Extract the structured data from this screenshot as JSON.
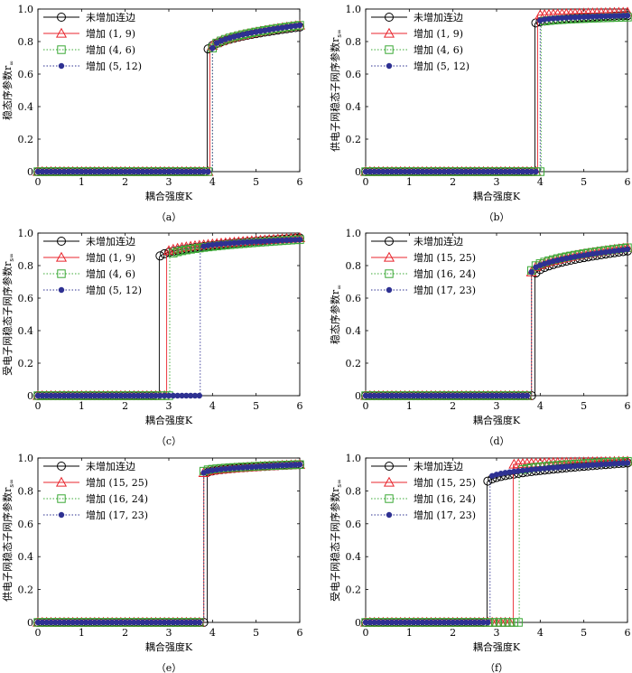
{
  "chart_data": [
    {
      "type": "line",
      "caption": "（a）",
      "xlabel": "耦合强度K",
      "ylabel": "稳态序参数r",
      "ylabel_sub": "∞",
      "xlim": [
        0,
        6
      ],
      "ylim": [
        0,
        1
      ],
      "xticks": [
        "0",
        "1",
        "2",
        "3",
        "4",
        "5",
        "6"
      ],
      "yticks": [
        "0",
        "0.2",
        "0.4",
        "0.6",
        "0.8",
        "1.0"
      ],
      "grid": false,
      "legend": "top-left",
      "series": [
        {
          "name": "未增加连边",
          "color": "#000000",
          "marker": "circle",
          "line": "solid",
          "jump": 3.88,
          "start": 0.74,
          "end": 0.89
        },
        {
          "name": "增加 (1, 9)",
          "color": "#e8262d",
          "marker": "triangle",
          "line": "solid",
          "jump": 3.94,
          "start": 0.75,
          "end": 0.9
        },
        {
          "name": "增加 (4, 6)",
          "color": "#3aa935",
          "marker": "square",
          "line": "dotted",
          "jump": 4.0,
          "start": 0.76,
          "end": 0.9
        },
        {
          "name": "增加 (5, 12)",
          "color": "#2e3192",
          "marker": "dot",
          "line": "dotted",
          "jump": 4.0,
          "start": 0.76,
          "end": 0.9
        }
      ]
    },
    {
      "type": "line",
      "caption": "（b）",
      "xlabel": "耦合强度K",
      "ylabel": "供电子网稳态子网序参数r",
      "ylabel_sub": "s∞",
      "xlim": [
        0,
        6
      ],
      "ylim": [
        0,
        1
      ],
      "xticks": [
        "0",
        "1",
        "2",
        "3",
        "4",
        "5",
        "6"
      ],
      "yticks": [
        "0",
        "0.2",
        "0.4",
        "0.6",
        "0.8",
        "1.0"
      ],
      "grid": false,
      "legend": "top-left",
      "series": [
        {
          "name": "未增加连边",
          "color": "#000000",
          "marker": "circle",
          "line": "solid",
          "jump": 3.88,
          "start": 0.91,
          "end": 0.96
        },
        {
          "name": "增加 (1, 9)",
          "color": "#e8262d",
          "marker": "triangle",
          "line": "solid",
          "jump": 3.94,
          "start": 0.96,
          "end": 0.98
        },
        {
          "name": "增加 (4, 6)",
          "color": "#3aa935",
          "marker": "square",
          "line": "dotted",
          "jump": 4.02,
          "start": 0.92,
          "end": 0.95
        },
        {
          "name": "增加 (5, 12)",
          "color": "#2e3192",
          "marker": "dot",
          "line": "dotted",
          "jump": 4.0,
          "start": 0.93,
          "end": 0.96
        }
      ]
    },
    {
      "type": "line",
      "caption": "（c）",
      "xlabel": "耦合强度K",
      "ylabel": "受电子网稳态子网序参数r",
      "ylabel_sub": "s∞",
      "xlim": [
        0,
        6
      ],
      "ylim": [
        0,
        1
      ],
      "xticks": [
        "0",
        "1",
        "2",
        "3",
        "4",
        "5",
        "6"
      ],
      "yticks": [
        "0",
        "0.2",
        "0.4",
        "0.6",
        "0.8",
        "1.0"
      ],
      "grid": false,
      "legend": "top-left",
      "series": [
        {
          "name": "未增加连边",
          "color": "#000000",
          "marker": "circle",
          "line": "solid",
          "jump": 2.78,
          "start": 0.85,
          "end": 0.97
        },
        {
          "name": "增加 (1, 9)",
          "color": "#e8262d",
          "marker": "triangle",
          "line": "solid",
          "jump": 2.95,
          "start": 0.88,
          "end": 0.97
        },
        {
          "name": "增加 (4, 6)",
          "color": "#3aa935",
          "marker": "square",
          "line": "dotted",
          "jump": 3.02,
          "start": 0.86,
          "end": 0.96
        },
        {
          "name": "增加 (5, 12)",
          "color": "#2e3192",
          "marker": "dot",
          "line": "dotted",
          "jump": 3.72,
          "start": 0.91,
          "end": 0.96
        }
      ]
    },
    {
      "type": "line",
      "caption": "（d）",
      "xlabel": "耦合强度K",
      "ylabel": "稳态序参数r",
      "ylabel_sub": "∞",
      "xlim": [
        0,
        6
      ],
      "ylim": [
        0,
        1
      ],
      "xticks": [
        "0",
        "1",
        "2",
        "3",
        "4",
        "5",
        "6"
      ],
      "yticks": [
        "0",
        "0.2",
        "0.4",
        "0.6",
        "0.8",
        "1.0"
      ],
      "grid": false,
      "legend": "top-left",
      "series": [
        {
          "name": "未增加连边",
          "color": "#000000",
          "marker": "circle",
          "line": "solid",
          "jump": 3.88,
          "start": 0.74,
          "end": 0.89
        },
        {
          "name": "增加 (15, 25)",
          "color": "#e8262d",
          "marker": "triangle",
          "line": "solid",
          "jump": 3.8,
          "start": 0.76,
          "end": 0.91
        },
        {
          "name": "增加 (16, 24)",
          "color": "#3aa935",
          "marker": "square",
          "line": "dotted",
          "jump": 3.8,
          "start": 0.77,
          "end": 0.91
        },
        {
          "name": "增加 (17, 23)",
          "color": "#2e3192",
          "marker": "dot",
          "line": "dotted",
          "jump": 3.8,
          "start": 0.76,
          "end": 0.9
        }
      ]
    },
    {
      "type": "line",
      "caption": "（e）",
      "xlabel": "耦合强度K",
      "ylabel": "供电子网稳态子网序参数r",
      "ylabel_sub": "s∞",
      "xlim": [
        0,
        6
      ],
      "ylim": [
        0,
        1
      ],
      "xticks": [
        "0",
        "1",
        "2",
        "3",
        "4",
        "5",
        "6"
      ],
      "yticks": [
        "0",
        "0.2",
        "0.4",
        "0.6",
        "0.8",
        "1.0"
      ],
      "grid": false,
      "legend": "top-left",
      "series": [
        {
          "name": "未增加连边",
          "color": "#000000",
          "marker": "circle",
          "line": "solid",
          "jump": 3.88,
          "start": 0.91,
          "end": 0.96
        },
        {
          "name": "增加 (15, 25)",
          "color": "#e8262d",
          "marker": "triangle",
          "line": "solid",
          "jump": 3.8,
          "start": 0.91,
          "end": 0.96
        },
        {
          "name": "增加 (16, 24)",
          "color": "#3aa935",
          "marker": "square",
          "line": "dotted",
          "jump": 3.8,
          "start": 0.92,
          "end": 0.96
        },
        {
          "name": "增加 (17, 23)",
          "color": "#2e3192",
          "marker": "dot",
          "line": "dotted",
          "jump": 3.8,
          "start": 0.91,
          "end": 0.96
        }
      ]
    },
    {
      "type": "line",
      "caption": "（f）",
      "xlabel": "耦合强度K",
      "ylabel": "受电子网稳态子网序参数r",
      "ylabel_sub": "s∞",
      "xlim": [
        0,
        6
      ],
      "ylim": [
        0,
        1
      ],
      "xticks": [
        "0",
        "1",
        "2",
        "3",
        "4",
        "5",
        "6"
      ],
      "yticks": [
        "0",
        "0.2",
        "0.4",
        "0.6",
        "0.8",
        "1.0"
      ],
      "grid": false,
      "legend": "top-left",
      "series": [
        {
          "name": "未增加连边",
          "color": "#000000",
          "marker": "circle",
          "line": "solid",
          "jump": 2.78,
          "start": 0.85,
          "end": 0.97
        },
        {
          "name": "增加 (15, 25)",
          "color": "#e8262d",
          "marker": "triangle",
          "line": "solid",
          "jump": 3.38,
          "start": 0.96,
          "end": 0.98
        },
        {
          "name": "增加 (16, 24)",
          "color": "#3aa935",
          "marker": "square",
          "line": "dotted",
          "jump": 3.52,
          "start": 0.92,
          "end": 0.98
        },
        {
          "name": "增加 (17, 23)",
          "color": "#2e3192",
          "marker": "dot",
          "line": "dotted",
          "jump": 2.85,
          "start": 0.88,
          "end": 0.97
        }
      ]
    }
  ]
}
